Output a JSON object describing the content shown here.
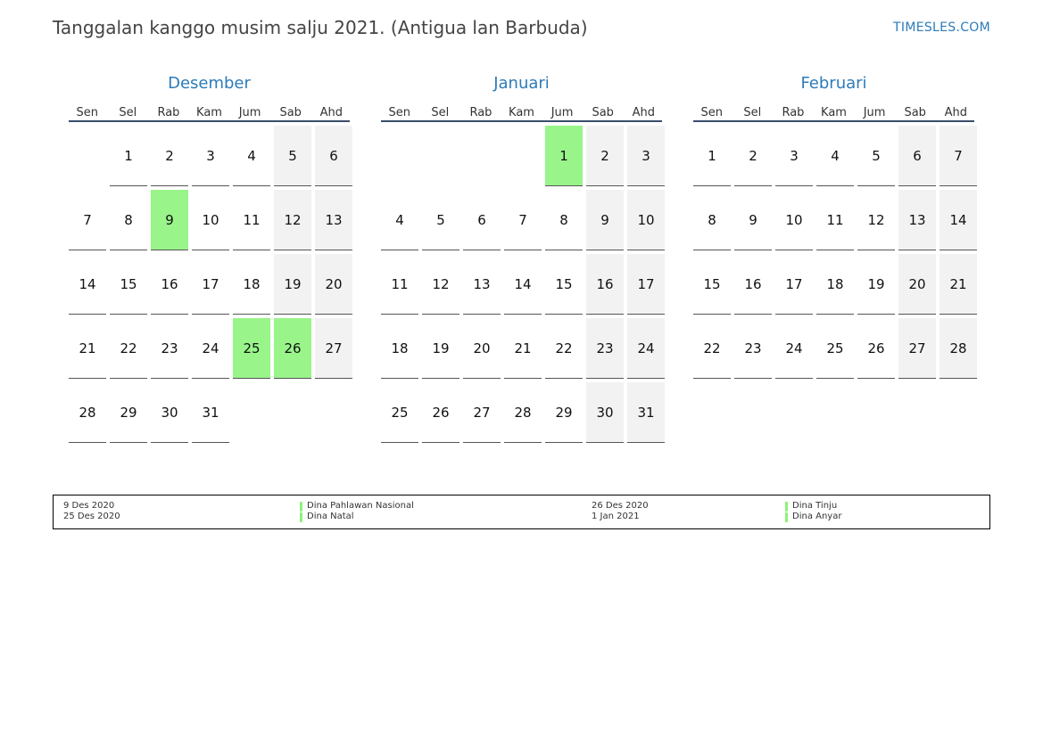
{
  "header": {
    "title": "Tanggalan kanggo musim salju 2021. (Antigua lan Barbuda)",
    "site": "TIMESLES.COM"
  },
  "weekdays": [
    "Sen",
    "Sel",
    "Rab",
    "Kam",
    "Jum",
    "Sab",
    "Ahd"
  ],
  "colors": {
    "accent": "#2d7bb8",
    "holiday": "#99f58a",
    "weekend": "#f2f2f2",
    "rule": "#3a4e6a"
  },
  "months": [
    {
      "name": "Desember",
      "offset": 1,
      "days": 31,
      "holidays": [
        9,
        25,
        26
      ]
    },
    {
      "name": "Januari",
      "offset": 4,
      "days": 31,
      "holidays": [
        1
      ]
    },
    {
      "name": "Februari",
      "offset": 0,
      "days": 28,
      "holidays": []
    }
  ],
  "legend": {
    "left": [
      {
        "date": "9 Des 2020",
        "name": "Dina Pahlawan Nasional"
      },
      {
        "date": "25 Des 2020",
        "name": "Dina Natal"
      }
    ],
    "right": [
      {
        "date": "26 Des 2020",
        "name": "Dina Tinju"
      },
      {
        "date": "1 Jan 2021",
        "name": "Dina Anyar"
      }
    ]
  }
}
